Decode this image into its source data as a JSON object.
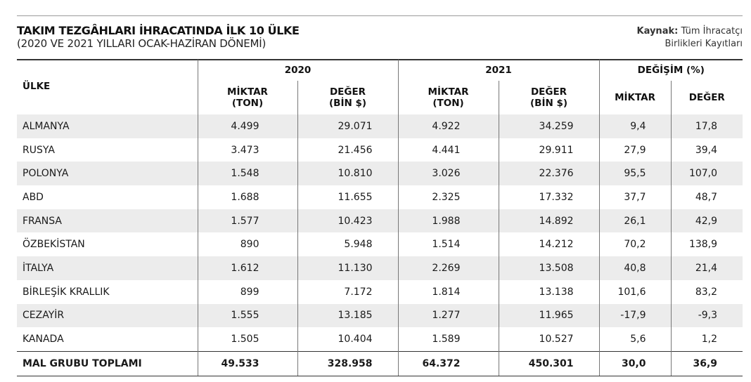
{
  "title": "TAKIM TEZGÂHLARI İHRACATINDA İLK 10 ÜLKE",
  "subtitle": "(2020 VE 2021 YILLARI OCAK-HAZİRAN DÖNEMİ)",
  "source": {
    "label": "Kaynak:",
    "line1": "Tüm İhracatçı",
    "line2": "Birlikleri Kayıtları"
  },
  "headers": {
    "country": "ÜLKE",
    "year_2020": "2020",
    "year_2021": "2021",
    "change": "DEĞİŞİM (%)",
    "qty_line1": "MİKTAR",
    "qty_line2": "(TON)",
    "val_line1": "DEĞER",
    "val_line2": "(BİN $)",
    "chg_qty": "MİKTAR",
    "chg_val": "DEĞER"
  },
  "rows": [
    {
      "country": "ALMANYA",
      "q2020": "4.499",
      "v2020": "29.071",
      "q2021": "4.922",
      "v2021": "34.259",
      "dq": "9,4",
      "dv": "17,8"
    },
    {
      "country": "RUSYA",
      "q2020": "3.473",
      "v2020": "21.456",
      "q2021": "4.441",
      "v2021": "29.911",
      "dq": "27,9",
      "dv": "39,4"
    },
    {
      "country": "POLONYA",
      "q2020": "1.548",
      "v2020": "10.810",
      "q2021": "3.026",
      "v2021": "22.376",
      "dq": "95,5",
      "dv": "107,0"
    },
    {
      "country": "ABD",
      "q2020": "1.688",
      "v2020": "11.655",
      "q2021": "2.325",
      "v2021": "17.332",
      "dq": "37,7",
      "dv": "48,7"
    },
    {
      "country": "FRANSA",
      "q2020": "1.577",
      "v2020": "10.423",
      "q2021": "1.988",
      "v2021": "14.892",
      "dq": "26,1",
      "dv": "42,9"
    },
    {
      "country": "ÖZBEKİSTAN",
      "q2020": "890",
      "v2020": "5.948",
      "q2021": "1.514",
      "v2021": "14.212",
      "dq": "70,2",
      "dv": "138,9"
    },
    {
      "country": "İTALYA",
      "q2020": "1.612",
      "v2020": "11.130",
      "q2021": "2.269",
      "v2021": "13.508",
      "dq": "40,8",
      "dv": "21,4"
    },
    {
      "country": "BİRLEŞİK KRALLIK",
      "q2020": "899",
      "v2020": "7.172",
      "q2021": "1.814",
      "v2021": "13.138",
      "dq": "101,6",
      "dv": "83,2"
    },
    {
      "country": "CEZAYİR",
      "q2020": "1.555",
      "v2020": "13.185",
      "q2021": "1.277",
      "v2021": "11.965",
      "dq": "-17,9",
      "dv": "-9,3"
    },
    {
      "country": "KANADA",
      "q2020": "1.505",
      "v2020": "10.404",
      "q2021": "1.589",
      "v2021": "10.527",
      "dq": "5,6",
      "dv": "1,2"
    }
  ],
  "total": {
    "country": "MAL GRUBU TOPLAMI",
    "q2020": "49.533",
    "v2020": "328.958",
    "q2021": "64.372",
    "v2021": "450.301",
    "dq": "30,0",
    "dv": "36,9"
  }
}
